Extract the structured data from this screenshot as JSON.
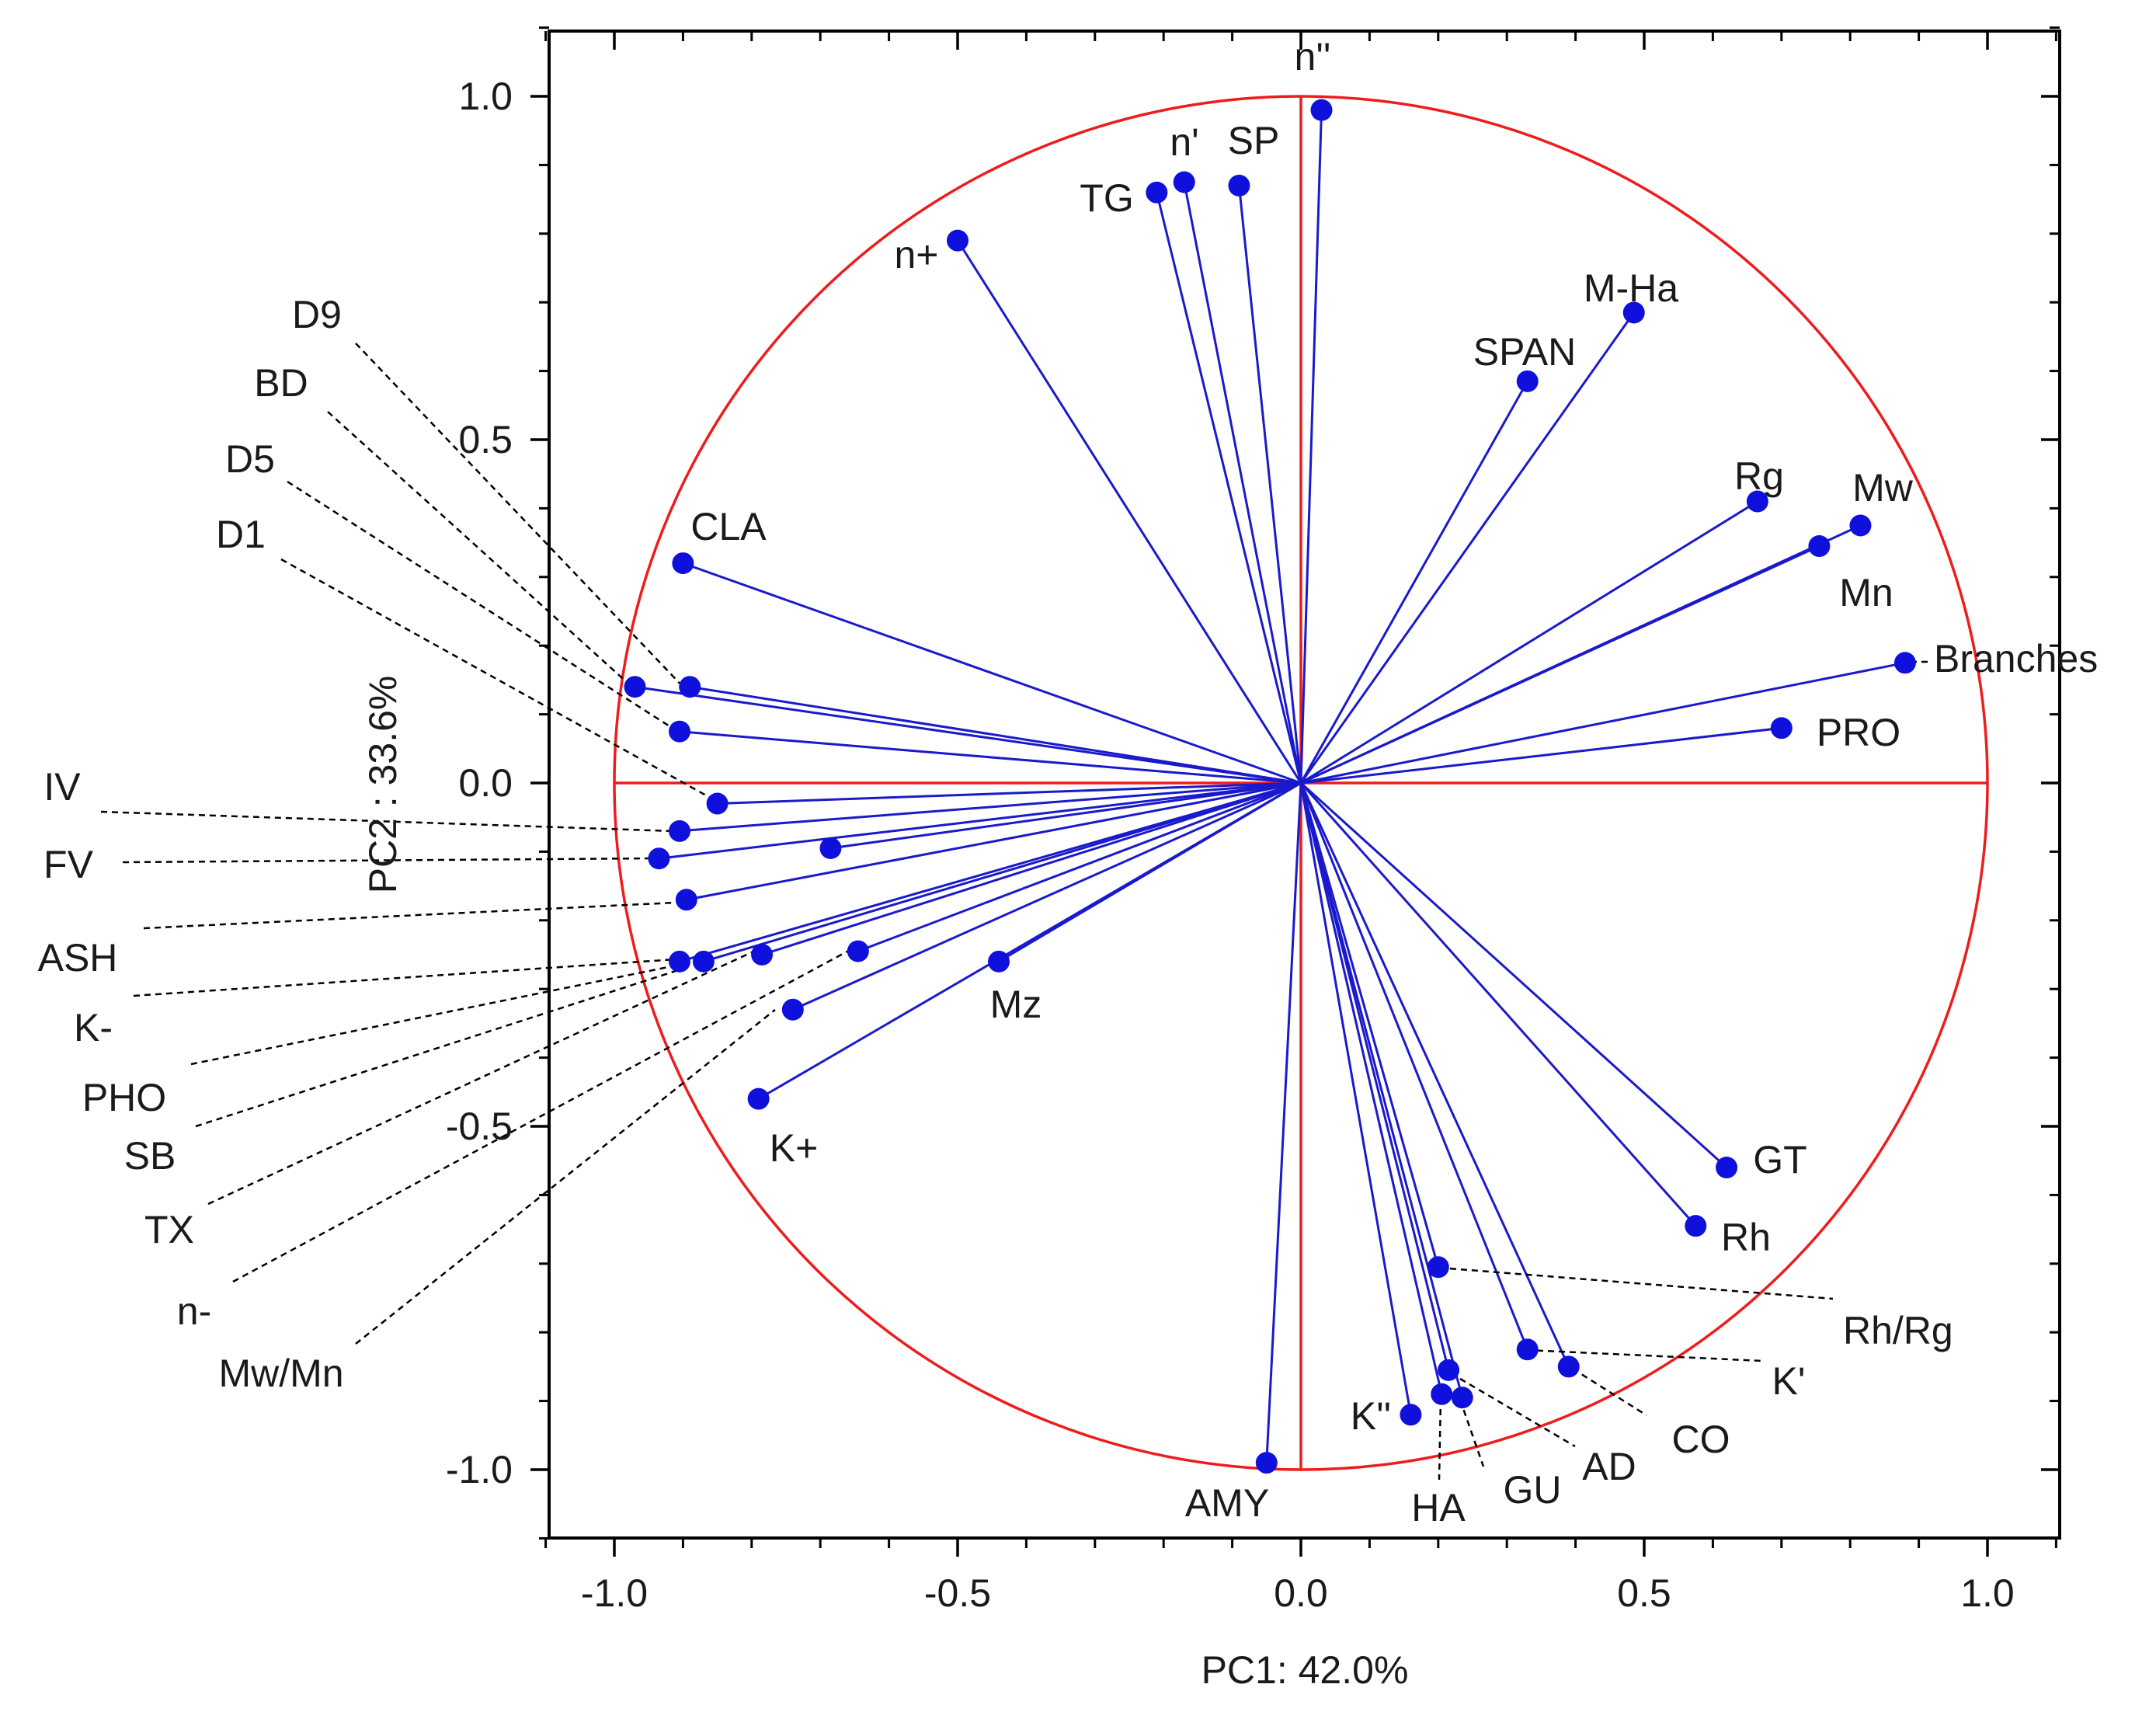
{
  "chart_data": {
    "type": "scatter",
    "subtype": "pca-correlation-circle",
    "xlabel": "PC1: 42.0%",
    "ylabel": "PC2 : 33.6%",
    "xlim": [
      -1.1,
      1.1
    ],
    "ylim": [
      -1.1,
      1.1
    ],
    "xticks": [
      -1.0,
      -0.5,
      0.0,
      0.5,
      1.0
    ],
    "yticks": [
      -1.0,
      -0.5,
      0.0,
      0.5,
      1.0
    ],
    "xtick_labels": [
      "-1.0",
      "-0.5",
      "0.0",
      "0.5",
      "1.0"
    ],
    "ytick_labels": [
      "-1.0",
      "-0.5",
      "0.0",
      "0.5",
      "1.0"
    ],
    "circle_radius": 1.0,
    "colors": {
      "circle": "#ee1c1c",
      "vector": "#1a1acc",
      "point": "#1010dd",
      "leader": "#000000",
      "text": "#1a1a1a"
    },
    "variables": [
      {
        "name": "n''",
        "x": 0.03,
        "y": 0.98
      },
      {
        "name": "n'",
        "x": -0.17,
        "y": 0.875
      },
      {
        "name": "SP",
        "x": -0.09,
        "y": 0.87
      },
      {
        "name": "TG",
        "x": -0.21,
        "y": 0.86
      },
      {
        "name": "n+",
        "x": -0.5,
        "y": 0.79
      },
      {
        "name": "M-Ha",
        "x": 0.485,
        "y": 0.685
      },
      {
        "name": "SPAN",
        "x": 0.33,
        "y": 0.585
      },
      {
        "name": "Rg",
        "x": 0.665,
        "y": 0.41
      },
      {
        "name": "Mw",
        "x": 0.815,
        "y": 0.375
      },
      {
        "name": "Mn",
        "x": 0.755,
        "y": 0.345
      },
      {
        "name": "Branches",
        "x": 0.88,
        "y": 0.175
      },
      {
        "name": "PRO",
        "x": 0.7,
        "y": 0.08
      },
      {
        "name": "CLA",
        "x": -0.9,
        "y": 0.32
      },
      {
        "name": "D9",
        "x": -0.89,
        "y": 0.14
      },
      {
        "name": "BD",
        "x": -0.97,
        "y": 0.14
      },
      {
        "name": "D5",
        "x": -0.905,
        "y": 0.075
      },
      {
        "name": "D1",
        "x": -0.85,
        "y": -0.03
      },
      {
        "name": "IV",
        "x": -0.905,
        "y": -0.07
      },
      {
        "name": "FV",
        "x": -0.935,
        "y": -0.11
      },
      {
        "name": "ASH",
        "x": -0.685,
        "y": -0.095
      },
      {
        "name": "K-",
        "x": -0.895,
        "y": -0.17
      },
      {
        "name": "PHO",
        "x": -0.905,
        "y": -0.26
      },
      {
        "name": "SB",
        "x": -0.87,
        "y": -0.26
      },
      {
        "name": "TX",
        "x": -0.785,
        "y": -0.25
      },
      {
        "name": "n-",
        "x": -0.645,
        "y": -0.245
      },
      {
        "name": "Mw/Mn",
        "x": -0.74,
        "y": -0.33
      },
      {
        "name": "Mz",
        "x": -0.44,
        "y": -0.26
      },
      {
        "name": "K+",
        "x": -0.79,
        "y": -0.46
      },
      {
        "name": "GT",
        "x": 0.62,
        "y": -0.56
      },
      {
        "name": "Rh",
        "x": 0.575,
        "y": -0.645
      },
      {
        "name": "Rh/Rg",
        "x": 0.2,
        "y": -0.705
      },
      {
        "name": "K'",
        "x": 0.33,
        "y": -0.825
      },
      {
        "name": "CO",
        "x": 0.39,
        "y": -0.85
      },
      {
        "name": "AD",
        "x": 0.215,
        "y": -0.855
      },
      {
        "name": "GU",
        "x": 0.235,
        "y": -0.895
      },
      {
        "name": "HA",
        "x": 0.205,
        "y": -0.89
      },
      {
        "name": "K''",
        "x": 0.16,
        "y": -0.92
      },
      {
        "name": "AMY",
        "x": -0.05,
        "y": -0.99
      }
    ]
  }
}
